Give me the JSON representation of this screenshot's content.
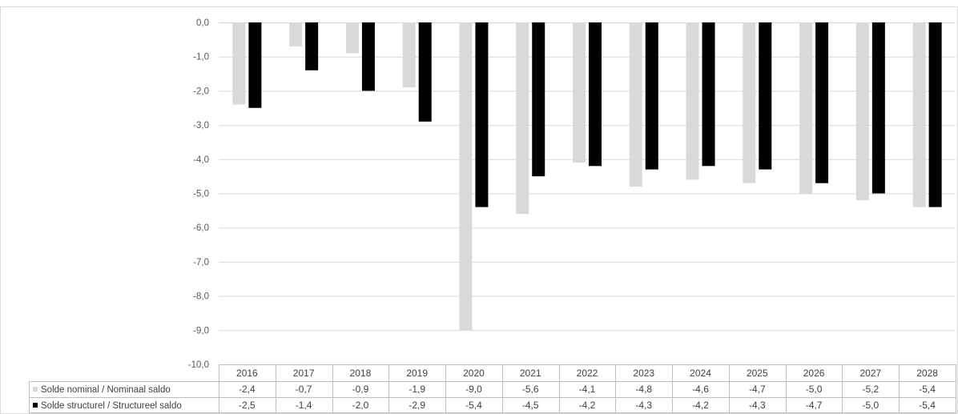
{
  "chart_data": {
    "type": "bar",
    "categories": [
      "2016",
      "2017",
      "2018",
      "2019",
      "2020",
      "2021",
      "2022",
      "2023",
      "2024",
      "2025",
      "2026",
      "2027",
      "2028"
    ],
    "series": [
      {
        "name": "Solde nominal / Nominaal saldo",
        "color": "#d9d9d9",
        "values": [
          -2.4,
          -0.7,
          -0.9,
          -1.9,
          -9.0,
          -5.6,
          -4.1,
          -4.8,
          -4.6,
          -4.7,
          -5.0,
          -5.2,
          -5.4
        ],
        "labels": [
          "-2,4",
          "-0,7",
          "-0,9",
          "-1,9",
          "-9,0",
          "-5,6",
          "-4,1",
          "-4,8",
          "-4,6",
          "-4,7",
          "-5,0",
          "-5,2",
          "-5,4"
        ]
      },
      {
        "name": "Solde structurel / Structureel saldo",
        "color": "#000000",
        "values": [
          -2.5,
          -1.4,
          -2.0,
          -2.9,
          -5.4,
          -4.5,
          -4.2,
          -4.3,
          -4.2,
          -4.3,
          -4.7,
          -5.0,
          -5.4
        ],
        "labels": [
          "-2,5",
          "-1,4",
          "-2,0",
          "-2,9",
          "-5,4",
          "-4,5",
          "-4,2",
          "-4,3",
          "-4,2",
          "-4,3",
          "-4,7",
          "-5,0",
          "-5,4"
        ]
      }
    ],
    "y_ticks": [
      "0,0",
      "-1,0",
      "-2,0",
      "-3,0",
      "-4,0",
      "-5,0",
      "-6,0",
      "-7,0",
      "-8,0",
      "-9,0",
      "-10,0"
    ],
    "ylim": [
      -10,
      0
    ],
    "grid": true,
    "data_table": true,
    "legend_position": "data-table-left"
  }
}
